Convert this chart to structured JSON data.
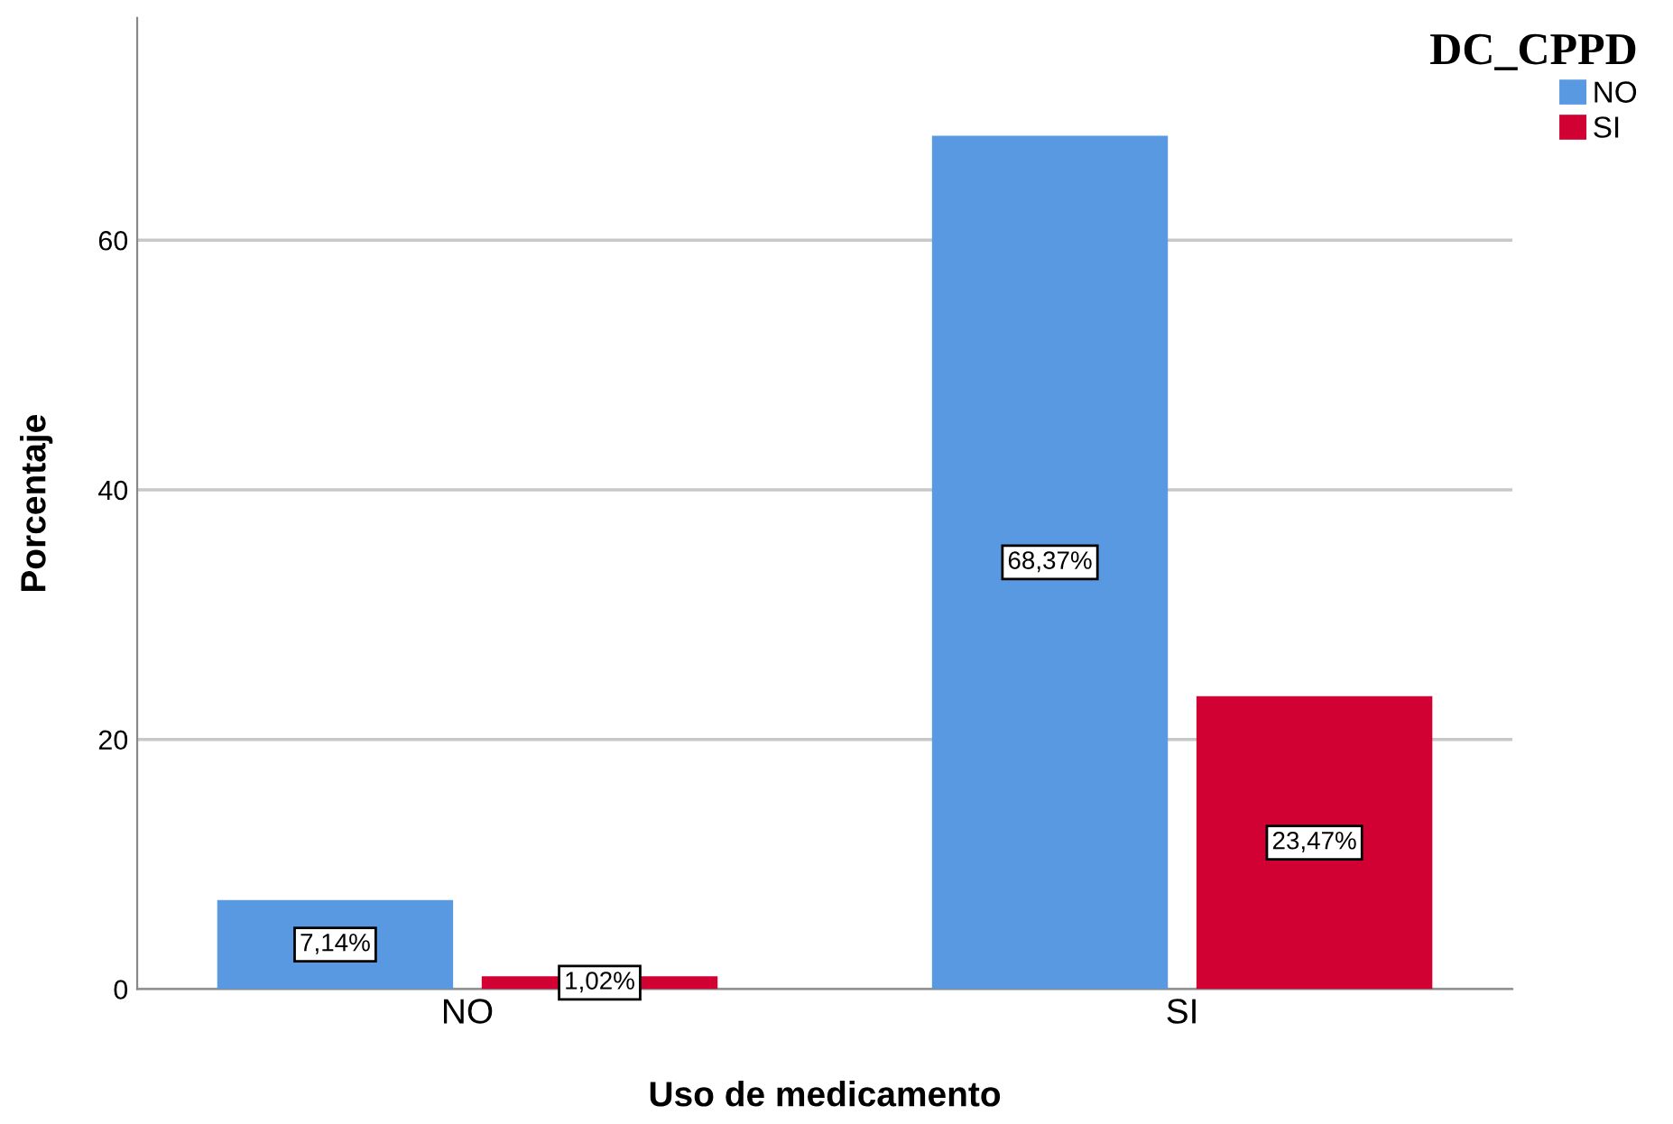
{
  "chart_data": {
    "type": "bar",
    "xlabel": "Uso de medicamento",
    "ylabel": "Porcentaje",
    "legend_title": "DC_CPPD",
    "categories": [
      "NO",
      "SI"
    ],
    "series": [
      {
        "name": "NO",
        "color": "#5899e2",
        "values": [
          7.14,
          68.37
        ],
        "value_labels": [
          "7,14%",
          "68,37%"
        ]
      },
      {
        "name": "SI",
        "color": "#d20134",
        "values": [
          1.02,
          23.47
        ],
        "value_labels": [
          "1,02%",
          "23,47%"
        ]
      }
    ],
    "ylim": [
      0,
      77.8
    ],
    "yticks": [
      0,
      20,
      40,
      60
    ],
    "grid": "y",
    "legend": "top right"
  }
}
